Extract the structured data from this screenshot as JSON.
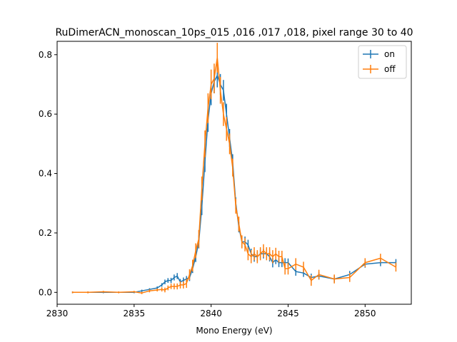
{
  "chart_data": {
    "type": "line",
    "title": "RuDimerACN_monoscan_10ps_015 ,016 ,017 ,018, pixel range 30 to 40",
    "xlabel": "Mono Energy (eV)",
    "ylabel": "",
    "xlim": [
      2830.0,
      2853.0
    ],
    "ylim": [
      -0.04,
      0.845
    ],
    "xticks": [
      2830,
      2835,
      2840,
      2845,
      2850
    ],
    "yticks": [
      0.0,
      0.2,
      0.4,
      0.6,
      0.8
    ],
    "xtick_labels": [
      "2830",
      "2835",
      "2840",
      "2845",
      "2850"
    ],
    "ytick_labels": [
      "0.0",
      "0.2",
      "0.4",
      "0.6",
      "0.8"
    ],
    "grid": false,
    "legend_position": "top-right",
    "series": [
      {
        "name": "on",
        "color": "#1f77b4",
        "x": [
          2831,
          2832,
          2833,
          2834,
          2835,
          2835.5,
          2836,
          2836.5,
          2836.8,
          2837,
          2837.2,
          2837.4,
          2837.6,
          2837.8,
          2838,
          2838.2,
          2838.4,
          2838.6,
          2838.8,
          2839,
          2839.2,
          2839.4,
          2839.6,
          2839.8,
          2840,
          2840.2,
          2840.4,
          2840.6,
          2840.8,
          2841,
          2841.2,
          2841.4,
          2841.6,
          2841.8,
          2842,
          2842.2,
          2842.4,
          2842.6,
          2842.8,
          2843,
          2843.2,
          2843.4,
          2843.6,
          2843.8,
          2844,
          2844.2,
          2844.4,
          2844.6,
          2844.8,
          2845,
          2845.5,
          2846,
          2846.5,
          2847,
          2848,
          2849,
          2850,
          2851,
          2852
        ],
        "y": [
          0.0,
          0.0,
          0.0,
          0.0,
          0.0,
          0.005,
          0.01,
          0.015,
          0.025,
          0.035,
          0.04,
          0.04,
          0.05,
          0.055,
          0.035,
          0.04,
          0.045,
          0.05,
          0.08,
          0.12,
          0.17,
          0.29,
          0.44,
          0.58,
          0.67,
          0.71,
          0.73,
          0.7,
          0.68,
          0.6,
          0.52,
          0.44,
          0.3,
          0.22,
          0.17,
          0.17,
          0.16,
          0.13,
          0.12,
          0.12,
          0.13,
          0.13,
          0.13,
          0.12,
          0.1,
          0.11,
          0.1,
          0.1,
          0.1,
          0.1,
          0.07,
          0.065,
          0.05,
          0.055,
          0.045,
          0.06,
          0.095,
          0.1,
          0.1
        ],
        "err": [
          0.003,
          0.003,
          0.003,
          0.003,
          0.003,
          0.004,
          0.004,
          0.005,
          0.006,
          0.008,
          0.008,
          0.009,
          0.01,
          0.01,
          0.01,
          0.01,
          0.01,
          0.012,
          0.015,
          0.018,
          0.022,
          0.03,
          0.035,
          0.04,
          0.04,
          0.04,
          0.04,
          0.035,
          0.035,
          0.035,
          0.03,
          0.025,
          0.02,
          0.018,
          0.018,
          0.018,
          0.017,
          0.017,
          0.017,
          0.016,
          0.016,
          0.016,
          0.016,
          0.016,
          0.016,
          0.015,
          0.015,
          0.015,
          0.015,
          0.014,
          0.014,
          0.013,
          0.013,
          0.012,
          0.012,
          0.012,
          0.012,
          0.012,
          0.012
        ]
      },
      {
        "name": "off",
        "color": "#ff7f0e",
        "x": [
          2831,
          2832,
          2833,
          2834,
          2835,
          2835.5,
          2836,
          2836.5,
          2836.8,
          2837,
          2837.2,
          2837.4,
          2837.6,
          2837.8,
          2838,
          2838.2,
          2838.4,
          2838.6,
          2838.8,
          2839,
          2839.2,
          2839.4,
          2839.6,
          2839.8,
          2840,
          2840.2,
          2840.4,
          2840.6,
          2840.8,
          2841,
          2841.2,
          2841.4,
          2841.6,
          2841.8,
          2842,
          2842.2,
          2842.4,
          2842.6,
          2842.8,
          2843,
          2843.2,
          2843.4,
          2843.6,
          2843.8,
          2844,
          2844.2,
          2844.4,
          2844.6,
          2844.8,
          2845,
          2845.5,
          2846,
          2846.5,
          2847,
          2848,
          2849,
          2850,
          2851,
          2852
        ],
        "y": [
          0.0,
          0.0,
          0.002,
          0.0,
          0.002,
          -0.002,
          0.005,
          0.008,
          0.01,
          0.008,
          0.015,
          0.02,
          0.02,
          0.02,
          0.025,
          0.025,
          0.03,
          0.06,
          0.09,
          0.14,
          0.18,
          0.35,
          0.5,
          0.62,
          0.7,
          0.72,
          0.79,
          0.68,
          0.6,
          0.55,
          0.5,
          0.42,
          0.29,
          0.23,
          0.17,
          0.16,
          0.13,
          0.12,
          0.13,
          0.12,
          0.13,
          0.14,
          0.13,
          0.13,
          0.12,
          0.13,
          0.12,
          0.12,
          0.08,
          0.08,
          0.095,
          0.085,
          0.04,
          0.06,
          0.045,
          0.05,
          0.1,
          0.115,
          0.085
        ],
        "err": [
          0.003,
          0.003,
          0.003,
          0.003,
          0.003,
          0.004,
          0.005,
          0.005,
          0.007,
          0.008,
          0.008,
          0.009,
          0.01,
          0.01,
          0.012,
          0.012,
          0.015,
          0.018,
          0.02,
          0.025,
          0.03,
          0.04,
          0.045,
          0.05,
          0.05,
          0.05,
          0.05,
          0.045,
          0.04,
          0.04,
          0.035,
          0.03,
          0.025,
          0.025,
          0.022,
          0.022,
          0.022,
          0.022,
          0.022,
          0.022,
          0.022,
          0.022,
          0.022,
          0.022,
          0.022,
          0.02,
          0.02,
          0.02,
          0.02,
          0.02,
          0.02,
          0.018,
          0.018,
          0.016,
          0.015,
          0.015,
          0.015,
          0.015,
          0.015
        ]
      }
    ]
  }
}
